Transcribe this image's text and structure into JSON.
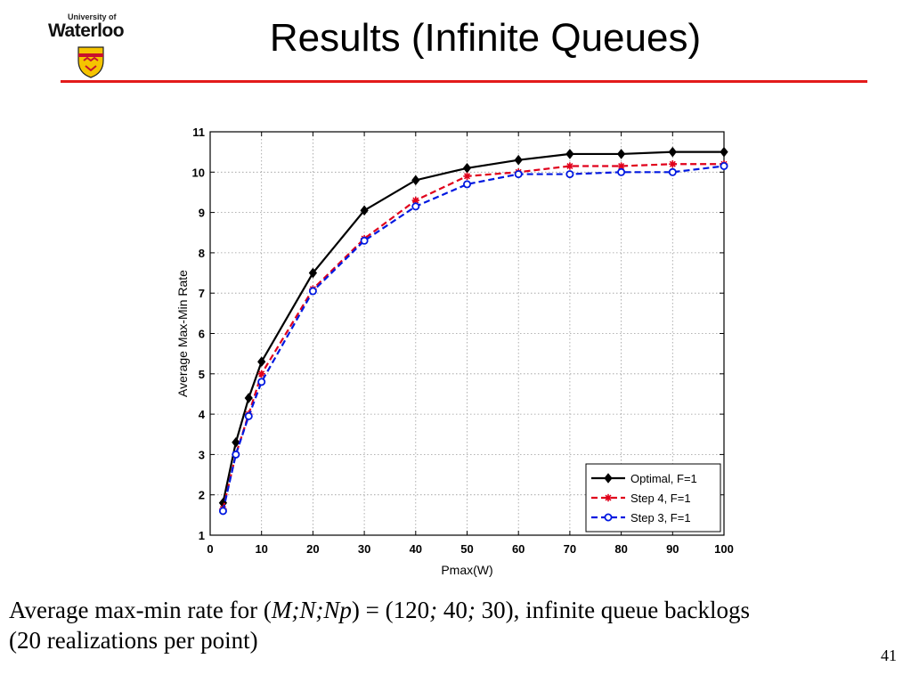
{
  "header": {
    "logo": {
      "top_text": "University of",
      "name": "Waterloo"
    },
    "title": "Results (Infinite Queues)",
    "accent_color": "#e31b1b"
  },
  "chart_data": {
    "type": "line",
    "title": "",
    "xlabel": "Pmax(W)",
    "ylabel": "Average Max-Min Rate",
    "xlim": [
      0,
      100
    ],
    "ylim": [
      1,
      11
    ],
    "xticks": [
      0,
      10,
      20,
      30,
      40,
      50,
      60,
      70,
      80,
      90,
      100
    ],
    "yticks": [
      1,
      2,
      3,
      4,
      5,
      6,
      7,
      8,
      9,
      10,
      11
    ],
    "grid": true,
    "legend_position": "bottom-right",
    "x": [
      2.5,
      5,
      7.5,
      10,
      20,
      30,
      40,
      50,
      60,
      70,
      80,
      90,
      100
    ],
    "series": [
      {
        "name": "Optimal, F=1",
        "color": "#000000",
        "line": "solid",
        "marker": "diamond",
        "values": [
          1.8,
          3.3,
          4.4,
          5.3,
          7.5,
          9.05,
          9.8,
          10.1,
          10.3,
          10.45,
          10.45,
          10.5,
          10.5
        ]
      },
      {
        "name": "Step 4, F=1",
        "color": "#e0001b",
        "line": "dashed",
        "marker": "asterisk",
        "values": [
          1.65,
          3.0,
          4.0,
          5.0,
          7.1,
          8.35,
          9.3,
          9.9,
          10.0,
          10.15,
          10.15,
          10.2,
          10.2
        ]
      },
      {
        "name": "Step 3, F=1",
        "color": "#0018e0",
        "line": "dashed",
        "marker": "circle",
        "values": [
          1.6,
          3.0,
          3.95,
          4.8,
          7.05,
          8.3,
          9.15,
          9.7,
          9.95,
          9.95,
          10.0,
          10.0,
          10.15
        ]
      }
    ]
  },
  "caption": {
    "prefix": "Average max-min rate for (",
    "math": "M;N;Np",
    "suffix": ") = (120",
    "sep1": ";",
    "v2": " 40",
    "sep2": ";",
    "v3": " 30), infinite queue backlogs",
    "line2": "(20 realizations per point)"
  },
  "page_number": "41"
}
